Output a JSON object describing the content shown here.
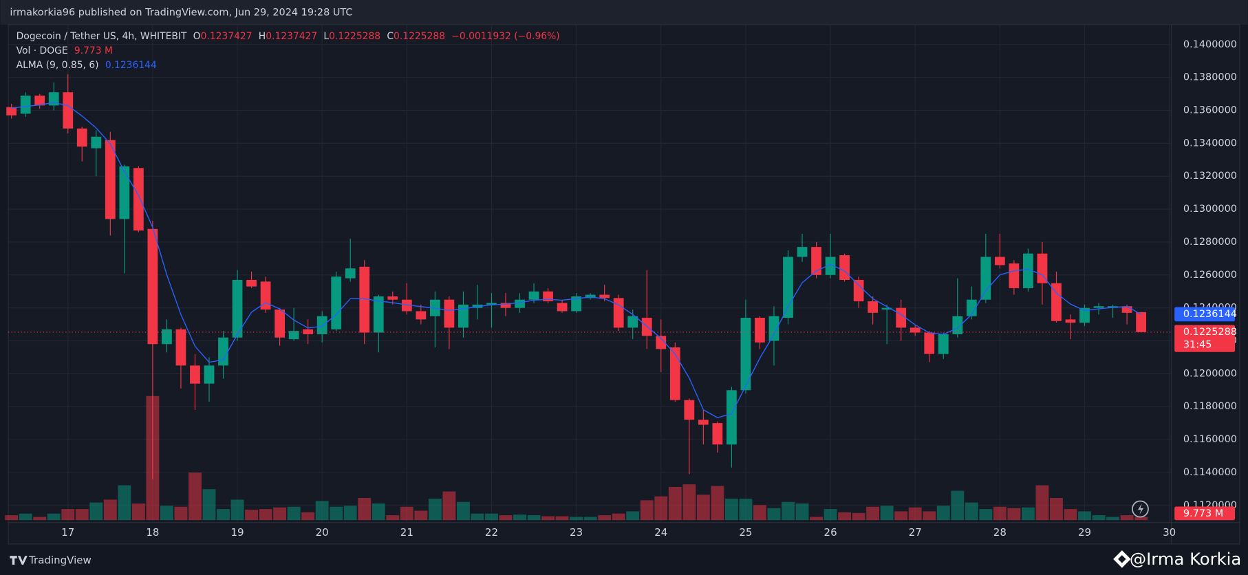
{
  "header": {
    "publisher": "irmakorkia96 published on TradingView.com, Jun 29, 2024 19:28 UTC"
  },
  "footer": {
    "brand": "TradingView",
    "watermark": "@Irma Korkia"
  },
  "chart_data": {
    "type": "candlestick",
    "title": "Dogecoin / Tether US, 4h, WHITEBIT",
    "legend": {
      "ohlc_labels": [
        "O",
        "H",
        "L",
        "C"
      ],
      "change": "−0.0011932 (−0.96%)",
      "volume_title": "Vol · DOGE",
      "volume_label": "9.773 M",
      "indicator": "ALMA (9, 0.85, 6)",
      "countdown": "31:45"
    },
    "up_color": "#089981",
    "down_color": "#f23645",
    "alma_color": "#2962ff",
    "grid": true,
    "open": [
      0.1362,
      0.1358,
      0.1369,
      0.1363,
      0.1371,
      0.1349,
      0.1337,
      0.1342,
      0.1294,
      0.1325,
      0.1288,
      0.1218,
      0.1227,
      0.1205,
      0.1194,
      0.1205,
      0.1222,
      0.1257,
      0.1256,
      0.1239,
      0.1221,
      0.1227,
      0.1224,
      0.1227,
      0.1258,
      0.1265,
      0.1225,
      0.1247,
      0.1245,
      0.1238,
      0.1235,
      0.1245,
      0.1228,
      0.124,
      0.1242,
      0.1243,
      0.124,
      0.1245,
      0.125,
      0.1243,
      0.1238,
      0.1246,
      0.1248,
      0.1246,
      0.1228,
      0.1234,
      0.1223,
      0.1216,
      0.1184,
      0.1172,
      0.117,
      0.1157,
      0.119,
      0.1234,
      0.122,
      0.1234,
      0.1271,
      0.1277,
      0.126,
      0.1272,
      0.1257,
      0.1244,
      0.1239,
      0.124,
      0.1228,
      0.1225,
      0.1212,
      0.1224,
      0.1235,
      0.1245,
      0.1271,
      0.1267,
      0.1252,
      0.1273,
      0.1255,
      0.1233,
      0.1231,
      0.124,
      0.124,
      0.1241,
      0.1237427
    ],
    "high": [
      0.1364,
      0.1371,
      0.137,
      0.1377,
      0.1382,
      0.135,
      0.1348,
      0.1347,
      0.1327,
      0.1326,
      0.1293,
      0.1233,
      0.1228,
      0.1212,
      0.121,
      0.1226,
      0.1263,
      0.1262,
      0.1259,
      0.124,
      0.124,
      0.1233,
      0.1238,
      0.1262,
      0.1282,
      0.1269,
      0.1248,
      0.125,
      0.1255,
      0.1242,
      0.125,
      0.1247,
      0.125,
      0.1254,
      0.1249,
      0.1249,
      0.1249,
      0.1255,
      0.1252,
      0.1245,
      0.1249,
      0.1249,
      0.1254,
      0.1248,
      0.1239,
      0.1263,
      0.1233,
      0.1219,
      0.1185,
      0.1178,
      0.1171,
      0.1192,
      0.1245,
      0.1235,
      0.1241,
      0.1275,
      0.1285,
      0.128,
      0.1285,
      0.1273,
      0.1259,
      0.1247,
      0.1242,
      0.1245,
      0.123,
      0.1226,
      0.1225,
      0.1258,
      0.1253,
      0.1285,
      0.1285,
      0.1269,
      0.1276,
      0.128,
      0.1262,
      0.1236,
      0.1242,
      0.1243,
      0.1242,
      0.1242,
      0.1237427
    ],
    "low": [
      0.1355,
      0.1356,
      0.1361,
      0.136,
      0.1346,
      0.1329,
      0.132,
      0.1284,
      0.1261,
      0.1286,
      0.1136,
      0.1213,
      0.1191,
      0.1178,
      0.1183,
      0.1197,
      0.122,
      0.1252,
      0.1237,
      0.1217,
      0.122,
      0.1218,
      0.1219,
      0.1226,
      0.1256,
      0.1218,
      0.1213,
      0.1242,
      0.1236,
      0.123,
      0.1216,
      0.1215,
      0.1222,
      0.1233,
      0.1228,
      0.1235,
      0.1237,
      0.1243,
      0.1243,
      0.1237,
      0.1237,
      0.1245,
      0.1244,
      0.1226,
      0.1221,
      0.1215,
      0.1201,
      0.1183,
      0.1139,
      0.1157,
      0.1152,
      0.1143,
      0.1188,
      0.1215,
      0.1205,
      0.123,
      0.1268,
      0.1258,
      0.1258,
      0.1256,
      0.124,
      0.123,
      0.1218,
      0.122,
      0.1223,
      0.1207,
      0.1209,
      0.1222,
      0.1233,
      0.1243,
      0.1264,
      0.1248,
      0.125,
      0.1242,
      0.1231,
      0.1221,
      0.1229,
      0.1236,
      0.1234,
      0.123,
      0.1225288
    ],
    "close": [
      0.1357,
      0.1369,
      0.1363,
      0.1371,
      0.1349,
      0.1338,
      0.1344,
      0.1294,
      0.1326,
      0.1287,
      0.1218,
      0.1227,
      0.1205,
      0.1194,
      0.1205,
      0.1222,
      0.1257,
      0.1253,
      0.1239,
      0.1222,
      0.1226,
      0.1224,
      0.1235,
      0.1259,
      0.1264,
      0.1225,
      0.1247,
      0.1245,
      0.1238,
      0.1233,
      0.1245,
      0.1228,
      0.1242,
      0.1242,
      0.1243,
      0.124,
      0.1245,
      0.125,
      0.1244,
      0.1238,
      0.1247,
      0.1248,
      0.1246,
      0.1228,
      0.1235,
      0.1223,
      0.1215,
      0.1184,
      0.1172,
      0.1169,
      0.1157,
      0.119,
      0.1234,
      0.1219,
      0.1235,
      0.1271,
      0.1277,
      0.126,
      0.1271,
      0.1257,
      0.1244,
      0.1237,
      0.124,
      0.1228,
      0.1225,
      0.1212,
      0.1224,
      0.1235,
      0.1245,
      0.1271,
      0.1266,
      0.1252,
      0.1273,
      0.1255,
      0.1232,
      0.1231,
      0.124,
      0.1241,
      0.1241,
      0.1237,
      0.1225288
    ],
    "volume": [
      15,
      20,
      10,
      20,
      34,
      34,
      54,
      63,
      107,
      51,
      381,
      44,
      41,
      146,
      95,
      34,
      63,
      32,
      34,
      39,
      41,
      24,
      59,
      41,
      44,
      68,
      51,
      15,
      41,
      29,
      66,
      88,
      56,
      20,
      20,
      15,
      17,
      15,
      12,
      12,
      10,
      10,
      15,
      20,
      27,
      61,
      73,
      102,
      110,
      78,
      105,
      66,
      66,
      46,
      37,
      56,
      51,
      10,
      34,
      24,
      22,
      41,
      44,
      27,
      39,
      27,
      44,
      90,
      54,
      34,
      41,
      37,
      39,
      107,
      68,
      34,
      27,
      15,
      10,
      15,
      9.773
    ],
    "alma": [
      0.13614,
      0.13624,
      0.13633,
      0.13648,
      0.13629,
      0.13566,
      0.13493,
      0.13397,
      0.13228,
      0.13083,
      0.1289,
      0.12601,
      0.1236,
      0.12167,
      0.1207,
      0.12085,
      0.12239,
      0.12374,
      0.12432,
      0.12394,
      0.12326,
      0.12278,
      0.12288,
      0.1236,
      0.12456,
      0.12456,
      0.12442,
      0.12432,
      0.12418,
      0.12408,
      0.12398,
      0.12384,
      0.12394,
      0.12408,
      0.12418,
      0.12423,
      0.12432,
      0.12447,
      0.12452,
      0.12447,
      0.12456,
      0.12466,
      0.12456,
      0.12418,
      0.1236,
      0.12288,
      0.12215,
      0.12119,
      0.11974,
      0.11781,
      0.11733,
      0.11757,
      0.11926,
      0.12095,
      0.12239,
      0.12408,
      0.12553,
      0.12625,
      0.12664,
      0.12625,
      0.12538,
      0.12456,
      0.12408,
      0.1236,
      0.12297,
      0.12249,
      0.12239,
      0.12278,
      0.1236,
      0.12505,
      0.12601,
      0.12625,
      0.12635,
      0.12601,
      0.1249,
      0.12423,
      0.12384,
      0.12394,
      0.12403,
      0.12408,
      0.1236144
    ],
    "xlim": [
      -0.225,
      82.14
    ],
    "xticks": [
      {
        "value": 4,
        "label": "17"
      },
      {
        "value": 10,
        "label": "18"
      },
      {
        "value": 16,
        "label": "19"
      },
      {
        "value": 22,
        "label": "20"
      },
      {
        "value": 28,
        "label": "21"
      },
      {
        "value": 34,
        "label": "22"
      },
      {
        "value": 40,
        "label": "23"
      },
      {
        "value": 46,
        "label": "24"
      },
      {
        "value": 52,
        "label": "25"
      },
      {
        "value": 58,
        "label": "26"
      },
      {
        "value": 64,
        "label": "27"
      },
      {
        "value": 70,
        "label": "28"
      },
      {
        "value": 76,
        "label": "29"
      },
      {
        "value": 82,
        "label": "30"
      }
    ],
    "ylim": [
      0.11096,
      0.14121
    ],
    "yticks": [
      {
        "value": 0.14,
        "label": "0.1400000"
      },
      {
        "value": 0.138,
        "label": "0.1380000"
      },
      {
        "value": 0.136,
        "label": "0.1360000"
      },
      {
        "value": 0.134,
        "label": "0.1340000"
      },
      {
        "value": 0.132,
        "label": "0.1320000"
      },
      {
        "value": 0.13,
        "label": "0.1300000"
      },
      {
        "value": 0.128,
        "label": "0.1280000"
      },
      {
        "value": 0.126,
        "label": "0.1260000"
      },
      {
        "value": 0.124,
        "label": "0.1240000"
      },
      {
        "value": 0.122,
        "label": "0.1220000"
      },
      {
        "value": 0.12,
        "label": "0.1200000"
      },
      {
        "value": 0.118,
        "label": "0.1180000"
      },
      {
        "value": 0.116,
        "label": "0.1160000"
      },
      {
        "value": 0.114,
        "label": "0.1140000"
      },
      {
        "value": 0.112,
        "label": "0.1120000"
      }
    ]
  }
}
